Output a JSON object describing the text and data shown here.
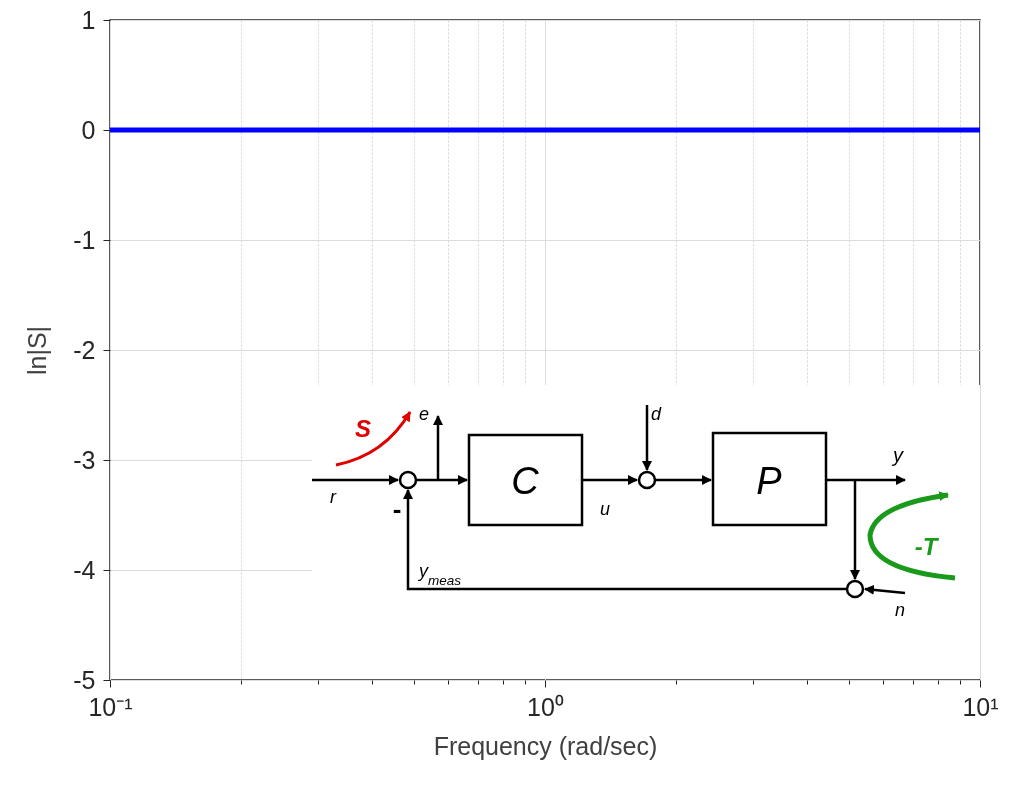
{
  "chart_data": {
    "type": "line",
    "xlabel": "Frequency (rad/sec)",
    "ylabel": "ln|S|",
    "series": [
      {
        "color": "#0000ff",
        "x": [
          0.1,
          10
        ],
        "values": [
          0,
          0
        ]
      }
    ],
    "log": "x",
    "xlim": [
      0.1,
      10
    ],
    "xticks": [
      {
        "value": 0.1,
        "label": "10⁻¹"
      },
      {
        "value": 0.2,
        "label": null
      },
      {
        "value": 0.3,
        "label": null
      },
      {
        "value": 0.4,
        "label": null
      },
      {
        "value": 0.5,
        "label": null
      },
      {
        "value": 0.6,
        "label": null
      },
      {
        "value": 0.7,
        "label": null
      },
      {
        "value": 0.8,
        "label": null
      },
      {
        "value": 0.9,
        "label": null
      },
      {
        "value": 1,
        "label": "10⁰"
      },
      {
        "value": 2,
        "label": null
      },
      {
        "value": 3,
        "label": null
      },
      {
        "value": 4,
        "label": null
      },
      {
        "value": 5,
        "label": null
      },
      {
        "value": 6,
        "label": null
      },
      {
        "value": 7,
        "label": null
      },
      {
        "value": 8,
        "label": null
      },
      {
        "value": 9,
        "label": null
      },
      {
        "value": 10,
        "label": "10¹"
      }
    ],
    "ylim": [
      -5,
      1
    ],
    "yticks": [
      -5,
      -4,
      -3,
      -2,
      -1,
      0,
      1
    ],
    "grid": true,
    "line_style": "solid",
    "annotations": [
      "S",
      "e",
      "C",
      "d",
      "P",
      "y",
      "r",
      "-",
      "u",
      "-T",
      "y$_{meas}$",
      "n"
    ]
  }
}
